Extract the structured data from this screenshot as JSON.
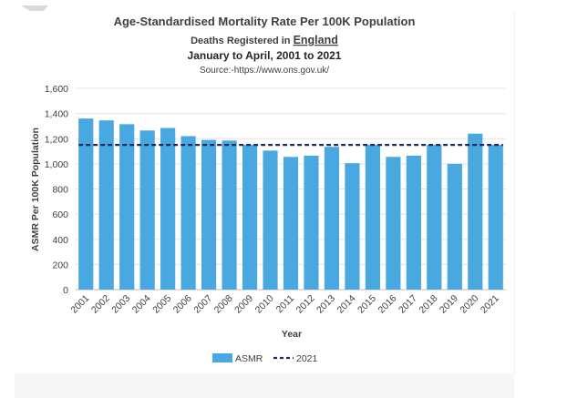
{
  "chart_data": {
    "type": "bar",
    "title": "Age-Standardised Mortality Rate Per 100K Population",
    "subtitle_prefix": "Deaths Registered in ",
    "subtitle_highlight": "England",
    "subtitle2": "January to April, 2001 to 2021",
    "source": "Source:-https://www.ons.gov.uk/",
    "xlabel": "Year",
    "ylabel": "ASMR Per 100K Population",
    "ylim": [
      0,
      1600
    ],
    "yticks": [
      0,
      200,
      400,
      600,
      800,
      1000,
      1200,
      1400,
      1600
    ],
    "ytick_labels": [
      "0",
      "200",
      "400",
      "600",
      "800",
      "1,000",
      "1,200",
      "1,400",
      "1,600"
    ],
    "categories": [
      "2001",
      "2002",
      "2003",
      "2004",
      "2005",
      "2006",
      "2007",
      "2008",
      "2009",
      "2010",
      "2011",
      "2012",
      "2013",
      "2014",
      "2015",
      "2016",
      "2017",
      "2018",
      "2019",
      "2020",
      "2021"
    ],
    "series": [
      {
        "name": "ASMR",
        "color": "#4aa8e0",
        "values": [
          1360,
          1345,
          1315,
          1265,
          1285,
          1220,
          1190,
          1185,
          1150,
          1105,
          1055,
          1065,
          1135,
          1005,
          1150,
          1055,
          1065,
          1150,
          1000,
          1240,
          1150
        ]
      }
    ],
    "reference_line": {
      "name": "2021",
      "value": 1150,
      "color": "#1f2a5c",
      "style": "dashed"
    },
    "grid": true,
    "legend": "bottom"
  }
}
